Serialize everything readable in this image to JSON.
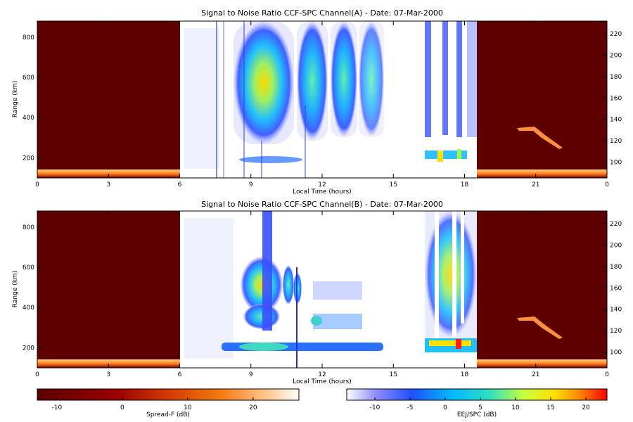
{
  "chart_data": [
    {
      "type": "heatmap",
      "title": "Signal to Noise Ratio CCF-SPC Channel(A) - Date: 07-Mar-2000",
      "xlabel": "Local Time (hours)",
      "ylabel": "Range (km)",
      "xlim": [
        0,
        24
      ],
      "ylim": [
        100,
        880
      ],
      "xticks": [
        "0",
        "3",
        "6",
        "9",
        "12",
        "15",
        "18",
        "21",
        "0"
      ],
      "yticks": [
        "200",
        "400",
        "600",
        "800"
      ],
      "y2ticks": [
        "100",
        "120",
        "140",
        "160",
        "180",
        "200",
        "220"
      ],
      "regions": [
        {
          "name": "Spread-F",
          "x": [
            0,
            6
          ]
        },
        {
          "name": "EEJ/SPC",
          "x": [
            6,
            18.5
          ]
        },
        {
          "name": "Spread-F",
          "x": [
            18.5,
            24
          ]
        }
      ]
    },
    {
      "type": "heatmap",
      "title": "Signal to Noise Ratio CCF-SPC Channel(B) - Date: 07-Mar-2000",
      "xlabel": "Local Time (hours)",
      "ylabel": "Range (km)",
      "xlim": [
        0,
        24
      ],
      "ylim": [
        100,
        880
      ],
      "xticks": [
        "0",
        "3",
        "6",
        "9",
        "12",
        "15",
        "18",
        "21",
        "0"
      ],
      "yticks": [
        "200",
        "400",
        "600",
        "800"
      ],
      "y2ticks": [
        "100",
        "120",
        "140",
        "160",
        "180",
        "200",
        "220"
      ],
      "regions": [
        {
          "name": "Spread-F",
          "x": [
            0,
            6
          ]
        },
        {
          "name": "EEJ/SPC",
          "x": [
            6,
            18.5
          ]
        },
        {
          "name": "Spread-F",
          "x": [
            18.5,
            24
          ]
        }
      ]
    }
  ],
  "colorbars": [
    {
      "label": "Spread-F (dB)",
      "ticks": [
        "-10",
        "0",
        "10",
        "20"
      ],
      "range": [
        -13,
        27
      ]
    },
    {
      "label": "EEJ/SPC (dB)",
      "ticks": [
        "-10",
        "-5",
        "0",
        "5",
        "10",
        "15",
        "20"
      ],
      "range": [
        -14,
        23
      ]
    }
  ]
}
